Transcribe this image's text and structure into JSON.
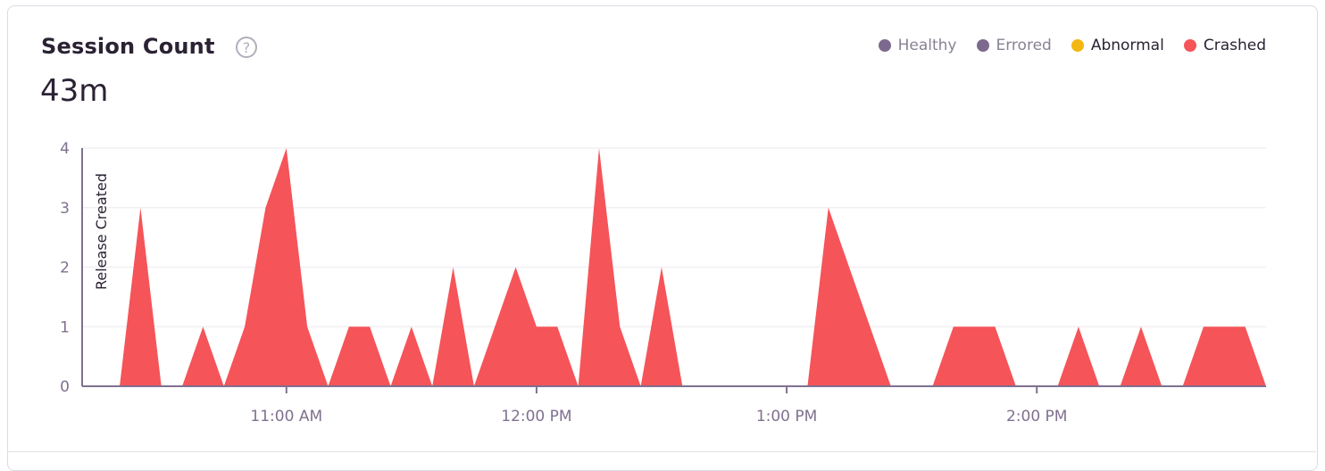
{
  "card": {
    "title": "Session Count",
    "help_icon": "question-circle-icon",
    "help_glyph": "?",
    "value": "43m"
  },
  "legend": [
    {
      "label": "Healthy",
      "color": "#7c6a8e",
      "enabled": false
    },
    {
      "label": "Errored",
      "color": "#7c6a8e",
      "enabled": false
    },
    {
      "label": "Abnormal",
      "color": "#f2b712",
      "enabled": true
    },
    {
      "label": "Crashed",
      "color": "#f55459",
      "enabled": true
    }
  ],
  "chart_data": {
    "type": "area",
    "title": "Session Count",
    "xlabel": "",
    "ylabel": "",
    "ylim": [
      0,
      4
    ],
    "xlim": [
      "10:11",
      "14:55"
    ],
    "yticks": [
      0,
      1,
      2,
      3,
      4
    ],
    "xticks": [
      {
        "t": "11:00",
        "label": "11:00 AM"
      },
      {
        "t": "12:00",
        "label": "12:00 PM"
      },
      {
        "t": "13:00",
        "label": "1:00 PM"
      },
      {
        "t": "14:00",
        "label": "2:00 PM"
      }
    ],
    "grid": true,
    "legend_position": "top-right",
    "markers": [
      {
        "t": "10:11",
        "label": "Release Created"
      }
    ],
    "series": [
      {
        "name": "Crashed",
        "color": "#f55459",
        "x": [
          "10:15",
          "10:20",
          "10:25",
          "10:30",
          "10:35",
          "10:40",
          "10:45",
          "10:50",
          "10:55",
          "11:00",
          "11:05",
          "11:10",
          "11:15",
          "11:20",
          "11:25",
          "11:30",
          "11:35",
          "11:40",
          "11:45",
          "11:50",
          "11:55",
          "12:00",
          "12:05",
          "12:10",
          "12:15",
          "12:20",
          "12:25",
          "12:30",
          "12:35",
          "12:40",
          "12:45",
          "12:50",
          "12:55",
          "13:00",
          "13:05",
          "13:10",
          "13:15",
          "13:20",
          "13:25",
          "13:30",
          "13:35",
          "13:40",
          "13:45",
          "13:50",
          "13:55",
          "14:00",
          "14:05",
          "14:10",
          "14:15",
          "14:20",
          "14:25",
          "14:30",
          "14:35",
          "14:40",
          "14:45",
          "14:50",
          "14:55"
        ],
        "values": [
          0,
          0,
          3,
          0,
          0,
          1,
          0,
          1,
          3,
          4,
          1,
          0,
          1,
          1,
          0,
          1,
          0,
          2,
          0,
          1,
          2,
          1,
          1,
          0,
          4,
          1,
          0,
          2,
          0,
          0,
          0,
          0,
          0,
          0,
          0,
          3,
          2,
          1,
          0,
          0,
          0,
          1,
          1,
          1,
          0,
          0,
          0,
          1,
          0,
          0,
          1,
          0,
          0,
          1,
          1,
          1,
          0
        ]
      }
    ]
  }
}
